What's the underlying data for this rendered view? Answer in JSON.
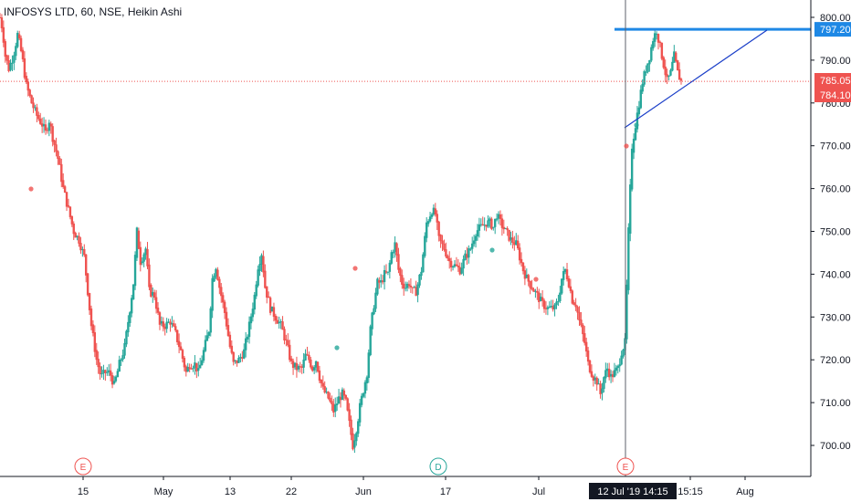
{
  "header": {
    "title": "INFOSYS LTD, 60, NSE, Heikin Ashi"
  },
  "colors": {
    "up": "#26a69a",
    "down": "#ef5350",
    "trendline_h": "#1e88e5",
    "trendline_d": "#1a3ec8",
    "last_price": "#ef5350",
    "crosshair": "#5d606b",
    "axis_bg": "#ffffff",
    "tag_dark": "#131722"
  },
  "chart_data": {
    "type": "candlestick",
    "style": "Heikin Ashi",
    "symbol": "INFOSYS LTD",
    "interval": "60",
    "exchange": "NSE",
    "ylim": [
      692,
      803
    ],
    "y_ticks": [
      "800.00",
      "790.00",
      "780.00",
      "770.00",
      "760.00",
      "750.00",
      "740.00",
      "730.00",
      "720.00",
      "710.00",
      "700.00"
    ],
    "x_ticks": [
      "15",
      "May",
      "13",
      "22",
      "Jun",
      "17",
      "Jul",
      "15:15",
      "Aug"
    ],
    "crosshair_label": "12 Jul '19  14:15",
    "price_tags": [
      {
        "label": "797.20",
        "value": 797.2,
        "kind": "hline"
      },
      {
        "label": "785.05",
        "value": 785.05,
        "kind": "last"
      },
      {
        "label": "784.10",
        "value": 784.1,
        "kind": "dark"
      }
    ],
    "events": [
      {
        "label": "E",
        "kind": "earnings"
      },
      {
        "label": "D",
        "kind": "dividend"
      },
      {
        "label": "E",
        "kind": "earnings"
      }
    ],
    "horizontal_line": 797.2,
    "last_price": 785.05,
    "trend_path": [
      [
        800,
        800
      ],
      [
        803,
        797
      ],
      [
        806,
        791
      ],
      [
        810,
        788
      ],
      [
        815,
        791
      ],
      [
        820,
        796
      ],
      [
        825,
        791
      ],
      [
        830,
        784
      ],
      [
        836,
        780
      ],
      [
        842,
        777
      ],
      [
        848,
        775
      ],
      [
        852,
        773
      ],
      [
        856,
        776
      ],
      [
        860,
        772
      ],
      [
        866,
        767
      ],
      [
        872,
        760
      ],
      [
        878,
        755
      ],
      [
        884,
        750
      ],
      [
        890,
        748
      ],
      [
        896,
        744
      ],
      [
        904,
        728
      ],
      [
        910,
        720
      ],
      [
        915,
        716
      ],
      [
        920,
        717
      ],
      [
        925,
        717
      ],
      [
        930,
        714
      ],
      [
        936,
        719
      ],
      [
        942,
        723
      ],
      [
        948,
        732
      ],
      [
        952,
        738
      ],
      [
        956,
        750
      ],
      [
        960,
        743
      ],
      [
        966,
        746
      ],
      [
        970,
        736
      ],
      [
        976,
        735
      ],
      [
        982,
        728
      ],
      [
        988,
        728
      ],
      [
        994,
        729
      ],
      [
        1000,
        726
      ],
      [
        1006,
        722
      ],
      [
        1012,
        717
      ],
      [
        1016,
        719
      ],
      [
        1022,
        719
      ],
      [
        1026,
        717
      ],
      [
        1032,
        722
      ],
      [
        1038,
        727
      ],
      [
        1042,
        739
      ],
      [
        1046,
        742
      ],
      [
        1050,
        737
      ],
      [
        1056,
        731
      ],
      [
        1062,
        723
      ],
      [
        1066,
        719
      ],
      [
        1072,
        720
      ],
      [
        1078,
        722
      ],
      [
        1084,
        728
      ],
      [
        1090,
        735
      ],
      [
        1094,
        742
      ],
      [
        1098,
        745
      ],
      [
        1102,
        737
      ],
      [
        1108,
        732
      ],
      [
        1114,
        730
      ],
      [
        1120,
        728
      ],
      [
        1126,
        724
      ],
      [
        1132,
        719
      ],
      [
        1138,
        718
      ],
      [
        1144,
        718
      ],
      [
        1148,
        721
      ],
      [
        1152,
        720
      ],
      [
        1156,
        718
      ],
      [
        1160,
        720
      ],
      [
        1164,
        716
      ],
      [
        1168,
        713
      ],
      [
        1174,
        711
      ],
      [
        1180,
        708
      ],
      [
        1186,
        711
      ],
      [
        1190,
        712
      ],
      [
        1194,
        710
      ],
      [
        1198,
        705
      ],
      [
        1202,
        700
      ],
      [
        1206,
        704
      ],
      [
        1210,
        709
      ],
      [
        1214,
        713
      ],
      [
        1218,
        717
      ],
      [
        1222,
        727
      ],
      [
        1226,
        733
      ],
      [
        1230,
        738
      ],
      [
        1234,
        738
      ],
      [
        1238,
        740
      ],
      [
        1242,
        740
      ],
      [
        1246,
        745
      ],
      [
        1250,
        747
      ],
      [
        1254,
        741
      ],
      [
        1258,
        738
      ],
      [
        1262,
        737
      ],
      [
        1266,
        738
      ],
      [
        1270,
        736
      ],
      [
        1274,
        736
      ],
      [
        1280,
        741
      ],
      [
        1286,
        752
      ],
      [
        1292,
        755
      ],
      [
        1296,
        754
      ],
      [
        1300,
        748
      ],
      [
        1306,
        746
      ],
      [
        1312,
        743
      ],
      [
        1318,
        742
      ],
      [
        1324,
        741
      ],
      [
        1330,
        744
      ],
      [
        1336,
        746
      ],
      [
        1342,
        750
      ],
      [
        1348,
        751
      ],
      [
        1354,
        752
      ],
      [
        1358,
        752
      ],
      [
        1362,
        751
      ],
      [
        1366,
        754
      ],
      [
        1370,
        752
      ],
      [
        1376,
        750
      ],
      [
        1382,
        748
      ],
      [
        1388,
        747
      ],
      [
        1392,
        744
      ],
      [
        1396,
        741
      ],
      [
        1400,
        739
      ],
      [
        1406,
        737
      ],
      [
        1412,
        735
      ],
      [
        1418,
        733
      ],
      [
        1424,
        732
      ],
      [
        1428,
        732
      ],
      [
        1432,
        732
      ],
      [
        1436,
        734
      ],
      [
        1440,
        739
      ],
      [
        1444,
        741
      ],
      [
        1448,
        738
      ],
      [
        1452,
        734
      ],
      [
        1456,
        733
      ],
      [
        1460,
        729
      ],
      [
        1466,
        724
      ],
      [
        1470,
        719
      ],
      [
        1476,
        716
      ],
      [
        1480,
        715
      ],
      [
        1484,
        712
      ],
      [
        1488,
        716
      ],
      [
        1492,
        718
      ],
      [
        1496,
        716
      ],
      [
        1500,
        717
      ],
      [
        1504,
        718
      ],
      [
        1508,
        722
      ],
      [
        1512,
        724
      ],
      [
        1516,
        750
      ],
      [
        1520,
        770
      ],
      [
        1524,
        775
      ],
      [
        1528,
        780
      ],
      [
        1532,
        785
      ],
      [
        1536,
        788
      ],
      [
        1540,
        791
      ],
      [
        1544,
        795
      ],
      [
        1548,
        797
      ],
      [
        1552,
        793
      ],
      [
        1556,
        789
      ],
      [
        1560,
        785
      ],
      [
        1564,
        787
      ],
      [
        1568,
        791
      ],
      [
        1572,
        787
      ],
      [
        1576,
        785
      ]
    ]
  }
}
